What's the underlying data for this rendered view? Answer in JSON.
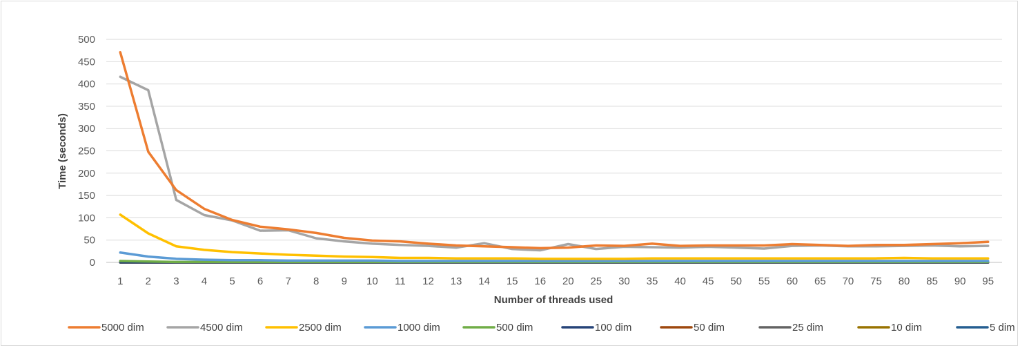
{
  "chart_data": {
    "type": "line",
    "title": "",
    "xlabel": "Number of threads used",
    "ylabel": "Time  (seconds)",
    "ylim": [
      0,
      500
    ],
    "yticks": [
      0,
      50,
      100,
      150,
      200,
      250,
      300,
      350,
      400,
      450,
      500
    ],
    "grid": true,
    "legend_position": "bottom",
    "categories": [
      "1",
      "2",
      "3",
      "4",
      "5",
      "6",
      "7",
      "8",
      "9",
      "10",
      "11",
      "12",
      "13",
      "14",
      "15",
      "16",
      "20",
      "25",
      "30",
      "35",
      "40",
      "45",
      "50",
      "55",
      "60",
      "65",
      "70",
      "75",
      "80",
      "85",
      "90",
      "95"
    ],
    "series": [
      {
        "name": "5000 dim",
        "color": "#ED7D31",
        "values": [
          471,
          248,
          162,
          120,
          95,
          80,
          74,
          66,
          55,
          49,
          47,
          42,
          38,
          36,
          34,
          32,
          33,
          38,
          37,
          42,
          37,
          38,
          38,
          38,
          41,
          39,
          37,
          39,
          39,
          41,
          43,
          46
        ]
      },
      {
        "name": "4500 dim",
        "color": "#A5A5A5",
        "values": [
          416,
          386,
          140,
          106,
          94,
          71,
          72,
          54,
          47,
          42,
          39,
          37,
          33,
          43,
          30,
          27,
          41,
          30,
          35,
          34,
          33,
          35,
          33,
          31,
          37,
          38,
          36,
          36,
          37,
          38,
          36,
          37
        ]
      },
      {
        "name": "2500 dim",
        "color": "#FFC000",
        "values": [
          107,
          65,
          36,
          28,
          23,
          20,
          17,
          15,
          13,
          12,
          10,
          10,
          9,
          9,
          9,
          8,
          8,
          8,
          8,
          9,
          9,
          9,
          9,
          9,
          9,
          9,
          9,
          9,
          10,
          9,
          9,
          9
        ]
      },
      {
        "name": "1000 dim",
        "color": "#5B9BD5",
        "values": [
          22,
          13,
          8,
          6,
          5,
          5,
          4,
          4,
          4,
          4,
          3,
          3,
          3,
          3,
          3,
          3,
          3,
          3,
          3,
          3,
          3,
          3,
          3,
          3,
          3,
          3,
          3,
          3,
          3,
          3,
          3,
          3
        ]
      },
      {
        "name": "500 dim",
        "color": "#70AD47",
        "values": [
          3,
          2,
          1,
          1,
          1,
          1,
          1,
          1,
          1,
          1,
          1,
          1,
          1,
          1,
          1,
          1,
          1,
          1,
          1,
          1,
          1,
          1,
          1,
          1,
          1,
          1,
          1,
          1,
          1,
          1,
          1,
          1
        ]
      },
      {
        "name": "100 dim",
        "color": "#264478",
        "values": [
          0,
          0,
          0,
          0,
          0,
          0,
          0,
          0,
          0,
          0,
          0,
          0,
          0,
          0,
          0,
          0,
          0,
          0,
          0,
          0,
          0,
          0,
          0,
          0,
          0,
          0,
          0,
          0,
          0,
          0,
          0,
          0
        ]
      },
      {
        "name": "50 dim",
        "color": "#9E480E",
        "values": [
          0,
          0,
          0,
          0,
          0,
          0,
          0,
          0,
          0,
          0,
          0,
          0,
          0,
          0,
          0,
          0,
          0,
          0,
          0,
          0,
          0,
          0,
          0,
          0,
          0,
          0,
          0,
          0,
          0,
          0,
          0,
          0
        ]
      },
      {
        "name": "25 dim",
        "color": "#636363",
        "values": [
          0,
          0,
          0,
          0,
          0,
          0,
          0,
          0,
          0,
          0,
          0,
          0,
          0,
          0,
          0,
          0,
          0,
          0,
          0,
          0,
          0,
          0,
          0,
          0,
          0,
          0,
          0,
          0,
          0,
          0,
          0,
          0
        ]
      },
      {
        "name": "10 dim",
        "color": "#997300",
        "values": [
          0,
          0,
          0,
          0,
          0,
          0,
          0,
          0,
          0,
          0,
          0,
          0,
          0,
          0,
          0,
          0,
          0,
          0,
          0,
          0,
          0,
          0,
          0,
          0,
          0,
          0,
          0,
          0,
          0,
          0,
          0,
          0
        ]
      },
      {
        "name": "5 dim",
        "color": "#255E91",
        "values": [
          0,
          0,
          0,
          0,
          0,
          0,
          0,
          0,
          0,
          0,
          0,
          0,
          0,
          0,
          0,
          0,
          0,
          0,
          0,
          0,
          0,
          0,
          0,
          0,
          0,
          0,
          0,
          0,
          0,
          0,
          0,
          0
        ]
      }
    ]
  }
}
